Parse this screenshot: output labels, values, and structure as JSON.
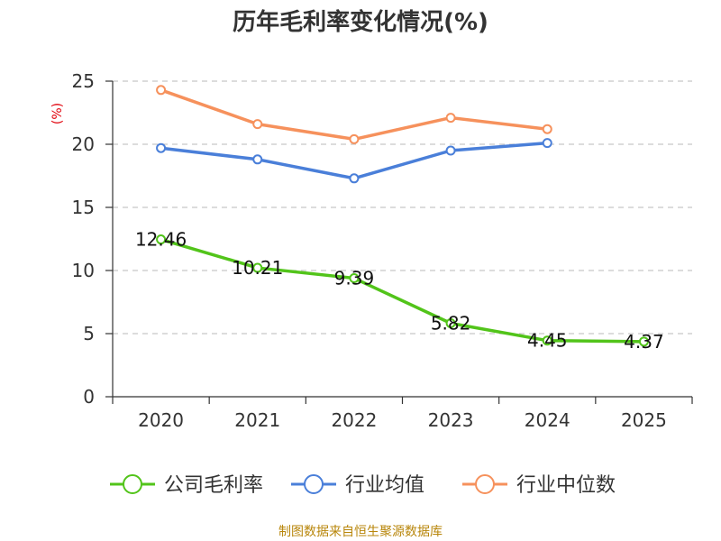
{
  "chart_data": {
    "type": "line",
    "title": "历年毛利率变化情况(%)",
    "ylabel": "(%)",
    "xlabel": "",
    "ylim": [
      0,
      25
    ],
    "yticks": [
      0,
      5,
      10,
      15,
      20,
      25
    ],
    "categories": [
      "2020",
      "2021",
      "2022",
      "2023",
      "2024",
      "2025"
    ],
    "grid": "horizontal-dashed",
    "legend_position": "bottom",
    "series": [
      {
        "name": "公司毛利率",
        "color": "#52c41a",
        "values": [
          12.46,
          10.21,
          9.39,
          5.82,
          4.45,
          4.37
        ],
        "labels": [
          "12.46",
          "10.21",
          "9.39",
          "5.82",
          "4.45",
          "4.37"
        ]
      },
      {
        "name": "行业均值",
        "color": "#4a7fd9",
        "values": [
          19.7,
          18.8,
          17.3,
          19.5,
          20.1,
          null
        ]
      },
      {
        "name": "行业中位数",
        "color": "#f6915c",
        "values": [
          24.3,
          21.6,
          20.4,
          22.1,
          21.2,
          null
        ]
      }
    ],
    "source": "制图数据来自恒生聚源数据库"
  }
}
